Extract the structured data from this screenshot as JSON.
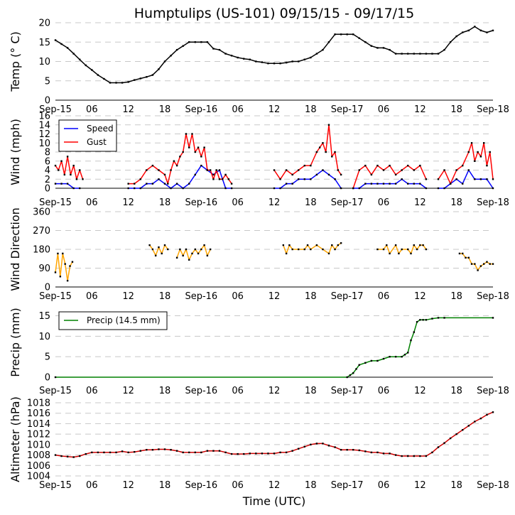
{
  "title": "Humptulips (US-101) 09/15/15 - 09/17/15",
  "xlabel": "Time (UTC)",
  "x_tick_labels": [
    "Sep-15",
    "06",
    "12",
    "18",
    "Sep-16",
    "06",
    "12",
    "18",
    "Sep-17",
    "06",
    "12",
    "18",
    "Sep-18"
  ],
  "x_tick_hours": [
    0,
    6,
    12,
    18,
    24,
    30,
    36,
    42,
    48,
    54,
    60,
    66,
    72
  ],
  "chart_data": [
    {
      "type": "line",
      "name": "temperature",
      "ylabel": "Temp (° C)",
      "ylim": [
        0,
        20
      ],
      "yticks": [
        0,
        5,
        10,
        15,
        20
      ],
      "grid": true,
      "series": [
        {
          "name": "Temp",
          "color": "#000000",
          "x": [
            0,
            1,
            2,
            3,
            4,
            5,
            6,
            7,
            8,
            9,
            10,
            11,
            12,
            13,
            14,
            15,
            16,
            17,
            18,
            19,
            20,
            21,
            22,
            23,
            24,
            25,
            26,
            27,
            28,
            29,
            30,
            31,
            32,
            33,
            34,
            35,
            36,
            37,
            38,
            39,
            40,
            41,
            42,
            43,
            44,
            45,
            46,
            47,
            48,
            49,
            50,
            51,
            52,
            53,
            54,
            55,
            56,
            57,
            58,
            59,
            60,
            61,
            62,
            63,
            64,
            65,
            66,
            67,
            68,
            69,
            70,
            71,
            72
          ],
          "y": [
            15.5,
            14.5,
            13.5,
            12,
            10.5,
            9,
            7.8,
            6.5,
            5.5,
            4.5,
            4.5,
            4.5,
            4.7,
            5.2,
            5.6,
            6,
            6.5,
            8,
            10,
            11.5,
            13,
            14,
            15,
            15,
            15,
            15,
            13.3,
            13,
            12,
            11.5,
            11,
            10.7,
            10.5,
            10,
            9.8,
            9.5,
            9.5,
            9.5,
            9.7,
            10,
            10,
            10.5,
            11,
            12,
            13,
            15,
            17,
            17,
            17,
            17,
            16,
            15,
            14,
            13.5,
            13.5,
            13,
            12,
            12,
            12,
            12,
            12,
            12,
            12,
            12,
            13,
            15,
            16.5,
            17.5,
            18,
            19,
            18,
            17.5,
            18
          ]
        }
      ]
    },
    {
      "type": "line",
      "name": "wind",
      "ylabel": "Wind (mph)",
      "ylim": [
        0,
        16
      ],
      "yticks": [
        0,
        2,
        4,
        6,
        8,
        10,
        12,
        14,
        16
      ],
      "grid": true,
      "legend": {
        "placement": "top-left",
        "entries": [
          "Speed",
          "Gust"
        ]
      },
      "series": [
        {
          "name": "Speed",
          "color": "#0000ff",
          "segments": [
            {
              "x": [
                0,
                1,
                2,
                3,
                4
              ],
              "y": [
                1,
                1,
                1,
                0,
                0
              ]
            },
            {
              "x": [
                12,
                13,
                14,
                15,
                16,
                17,
                18,
                19,
                20,
                21,
                22,
                23,
                24,
                25,
                26,
                27,
                28,
                29
              ],
              "y": [
                0,
                0,
                0,
                1,
                1,
                2,
                1,
                0,
                1,
                0,
                1,
                3,
                5,
                4,
                3,
                4,
                0,
                0
              ]
            },
            {
              "x": [
                36,
                37,
                38,
                39,
                40,
                41,
                42,
                43,
                44,
                45,
                46,
                47
              ],
              "y": [
                0,
                0,
                1,
                1,
                2,
                2,
                2,
                3,
                4,
                3,
                2,
                0
              ]
            },
            {
              "x": [
                49,
                50,
                51,
                52,
                53,
                54,
                55,
                56,
                57,
                58,
                59,
                60,
                61
              ],
              "y": [
                0,
                0,
                1,
                1,
                1,
                1,
                1,
                1,
                2,
                1,
                1,
                1,
                0
              ]
            },
            {
              "x": [
                63,
                64,
                65,
                66,
                67,
                68,
                69,
                70,
                71,
                72
              ],
              "y": [
                0,
                0,
                1,
                2,
                1,
                4,
                2,
                2,
                2,
                0
              ]
            }
          ]
        },
        {
          "name": "Gust",
          "color": "#ff0000",
          "segments": [
            {
              "x": [
                0,
                0.5,
                1,
                1.5,
                2,
                2.5,
                3,
                3.5,
                4,
                4.5
              ],
              "y": [
                5,
                4,
                6,
                3,
                7,
                3,
                5,
                2,
                4,
                2
              ]
            },
            {
              "x": [
                12,
                13,
                14,
                15,
                16,
                17,
                18,
                18.5,
                19,
                19.5,
                20,
                20.5,
                21,
                21.5,
                22,
                22.5,
                23,
                23.5,
                24,
                24.5,
                25,
                25.5,
                26,
                26.5,
                27,
                27.5,
                28,
                28.5,
                29
              ],
              "y": [
                1,
                1,
                2,
                4,
                5,
                4,
                3,
                1,
                4,
                6,
                5,
                7,
                8,
                12,
                9,
                12,
                8,
                9,
                7,
                9,
                4,
                4,
                2,
                4,
                2,
                2,
                3,
                2,
                1
              ]
            },
            {
              "x": [
                36,
                37,
                38,
                39,
                40,
                41,
                42,
                43,
                43.5,
                44,
                44.5,
                45,
                45.5,
                46,
                46.5,
                47
              ],
              "y": [
                4,
                2,
                4,
                3,
                4,
                5,
                5,
                8,
                9,
                10,
                8,
                14,
                7,
                8,
                4,
                3
              ]
            },
            {
              "x": [
                49,
                50,
                51,
                52,
                53,
                54,
                55,
                56,
                57,
                58,
                59,
                60,
                61
              ],
              "y": [
                0,
                4,
                5,
                3,
                5,
                4,
                5,
                3,
                4,
                5,
                4,
                5,
                2
              ]
            },
            {
              "x": [
                63,
                64,
                65,
                66,
                67,
                68,
                68.5,
                69,
                69.5,
                70,
                70.5,
                71,
                71.5,
                72
              ],
              "y": [
                2,
                4,
                1,
                4,
                5,
                8,
                10,
                6,
                8,
                7,
                10,
                5,
                8,
                2
              ]
            }
          ]
        }
      ]
    },
    {
      "type": "line",
      "name": "wind_direction",
      "ylabel": "Wind Direction",
      "ylim": [
        0,
        360
      ],
      "yticks": [
        0,
        90,
        180,
        270,
        360
      ],
      "grid": true,
      "series": [
        {
          "name": "Direction",
          "color": "#ffa500",
          "segments": [
            {
              "x": [
                0,
                0.4,
                0.8,
                1.2,
                1.6,
                2,
                2.4,
                2.8
              ],
              "y": [
                70,
                160,
                50,
                160,
                110,
                30,
                100,
                120
              ]
            },
            {
              "x": [
                15.5,
                16,
                16.5,
                17,
                17.5,
                18,
                18.5
              ],
              "y": [
                200,
                180,
                150,
                190,
                160,
                200,
                180
              ]
            },
            {
              "x": [
                20,
                20.5,
                21,
                21.5,
                22,
                22.5,
                23,
                23.5,
                24,
                24.5,
                25,
                25.5
              ],
              "y": [
                140,
                180,
                150,
                180,
                130,
                160,
                180,
                160,
                180,
                200,
                150,
                180
              ]
            },
            {
              "x": [
                37.5,
                38,
                38.5,
                39,
                40,
                41,
                41.5,
                42,
                43,
                44,
                45,
                45.5,
                46,
                46.5,
                47
              ],
              "y": [
                200,
                160,
                200,
                180,
                180,
                180,
                200,
                180,
                200,
                180,
                160,
                200,
                180,
                200,
                210
              ]
            },
            {
              "x": [
                53,
                54,
                54.5,
                55,
                56,
                56.5,
                57,
                58,
                58.5,
                59,
                59.5,
                60,
                60.5,
                61
              ],
              "y": [
                180,
                180,
                200,
                160,
                200,
                160,
                180,
                180,
                160,
                200,
                180,
                200,
                200,
                180
              ]
            },
            {
              "x": [
                66.5,
                67,
                67.5,
                68,
                68.5,
                69,
                69.5,
                70,
                70.5,
                71,
                71.5,
                72
              ],
              "y": [
                160,
                160,
                140,
                140,
                110,
                110,
                80,
                100,
                110,
                120,
                110,
                110
              ]
            }
          ]
        }
      ]
    },
    {
      "type": "line",
      "name": "precip",
      "ylabel": "Precip (mm)",
      "ylim": [
        0,
        17
      ],
      "yticks": [
        0,
        5,
        10,
        15
      ],
      "grid": true,
      "legend": {
        "placement": "top-left",
        "entries": [
          "Precip (14.5 mm)"
        ]
      },
      "series": [
        {
          "name": "Precip (14.5 mm)",
          "color": "#008000",
          "x": [
            0,
            48,
            48.5,
            49,
            49.5,
            50,
            51,
            52,
            53,
            54,
            55,
            56,
            57,
            57.5,
            58,
            58.5,
            59,
            59.5,
            60,
            60.5,
            61,
            62,
            63,
            64,
            72
          ],
          "y": [
            0,
            0,
            0.5,
            1,
            2,
            3,
            3.5,
            4,
            4,
            4.5,
            5,
            5,
            5,
            5.5,
            6,
            9,
            11,
            13.5,
            14,
            14,
            14,
            14.3,
            14.5,
            14.5,
            14.5
          ]
        }
      ]
    },
    {
      "type": "line",
      "name": "altimeter",
      "ylabel": "Altimeter (hPa)",
      "ylim": [
        1004,
        1018
      ],
      "yticks": [
        1004,
        1006,
        1008,
        1010,
        1012,
        1014,
        1016,
        1018
      ],
      "grid": true,
      "series": [
        {
          "name": "Altimeter",
          "color": "#cc0000",
          "x": [
            0,
            1,
            2,
            3,
            4,
            5,
            6,
            7,
            8,
            9,
            10,
            11,
            12,
            13,
            14,
            15,
            16,
            17,
            18,
            19,
            20,
            21,
            22,
            23,
            24,
            25,
            26,
            27,
            28,
            29,
            30,
            31,
            32,
            33,
            34,
            35,
            36,
            37,
            38,
            39,
            40,
            41,
            42,
            43,
            44,
            45,
            46,
            47,
            48,
            49,
            50,
            51,
            52,
            53,
            54,
            55,
            56,
            57,
            58,
            59,
            60,
            61,
            62,
            63,
            64,
            65,
            66,
            67,
            68,
            69,
            70,
            71,
            72
          ],
          "y": [
            1008,
            1007.8,
            1007.7,
            1007.6,
            1007.8,
            1008.2,
            1008.5,
            1008.5,
            1008.5,
            1008.5,
            1008.5,
            1008.7,
            1008.5,
            1008.6,
            1008.8,
            1009,
            1009,
            1009.1,
            1009.1,
            1009,
            1008.8,
            1008.5,
            1008.5,
            1008.5,
            1008.5,
            1008.8,
            1008.8,
            1008.8,
            1008.5,
            1008.2,
            1008.2,
            1008.2,
            1008.3,
            1008.3,
            1008.3,
            1008.3,
            1008.3,
            1008.5,
            1008.5,
            1008.8,
            1009.2,
            1009.6,
            1010,
            1010.2,
            1010.2,
            1009.8,
            1009.5,
            1009,
            1009,
            1009,
            1008.9,
            1008.7,
            1008.5,
            1008.5,
            1008.3,
            1008.3,
            1008,
            1007.8,
            1007.8,
            1007.8,
            1007.8,
            1007.8,
            1008.5,
            1009.5,
            1010.3,
            1011.2,
            1012,
            1012.8,
            1013.6,
            1014.4,
            1015,
            1015.7,
            1016.2
          ]
        }
      ]
    }
  ]
}
